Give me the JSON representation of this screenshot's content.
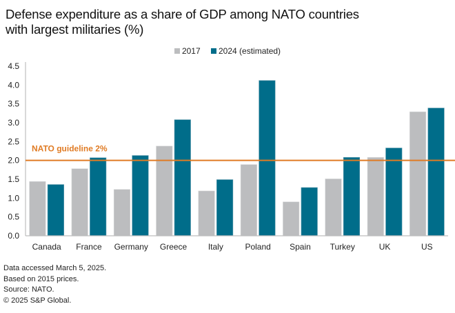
{
  "chart_data": {
    "type": "bar",
    "title": "Defense expenditure as a share of GDP among NATO countries with largest militaries (%)",
    "title_lines": [
      "Defense expenditure as a share of GDP among NATO countries",
      "with largest militaries (%)"
    ],
    "xlabel": "",
    "ylabel": "",
    "categories": [
      "Canada",
      "France",
      "Germany",
      "Greece",
      "Italy",
      "Poland",
      "Spain",
      "Turkey",
      "UK",
      "US"
    ],
    "series": [
      {
        "name": "2017",
        "color": "#bcbdbf",
        "values": [
          1.44,
          1.78,
          1.23,
          2.38,
          1.19,
          1.89,
          0.9,
          1.51,
          2.08,
          3.29
        ]
      },
      {
        "name": "2024 (estimated)",
        "color": "#006d8a",
        "values": [
          1.36,
          2.07,
          2.13,
          3.08,
          1.49,
          4.12,
          1.28,
          2.08,
          2.33,
          3.39
        ]
      }
    ],
    "ylim": [
      0,
      4.5
    ],
    "yticks": [
      "0.0",
      "0.5",
      "1.0",
      "1.5",
      "2.0",
      "2.5",
      "3.0",
      "3.5",
      "4.0",
      "4.5"
    ],
    "ytick_values": [
      0,
      0.5,
      1.0,
      1.5,
      2.0,
      2.5,
      3.0,
      3.5,
      4.0,
      4.5
    ],
    "grid": false,
    "legend_position": "top-center",
    "reference_line": {
      "value": 2.0,
      "label": "NATO guideline 2%",
      "color": "#e07b24"
    }
  },
  "footnotes": [
    "Data accessed March 5, 2025.",
    "Based on 2015 prices.",
    "Source: NATO.",
    "© 2025 S&P Global."
  ]
}
